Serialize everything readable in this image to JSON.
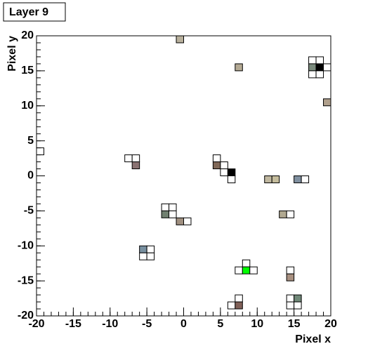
{
  "chart_data": {
    "type": "cells",
    "title": "Layer 9",
    "x_label": "Pixel x",
    "y_label": "Pixel y",
    "xlim": [
      -20,
      20
    ],
    "ylim": [
      -20,
      20
    ],
    "xticks": [
      -20,
      -15,
      -10,
      -5,
      0,
      5,
      10,
      15,
      20
    ],
    "yticks": [
      -20,
      -15,
      -10,
      -5,
      0,
      5,
      10,
      15,
      20
    ],
    "cells": [
      {
        "x": -1,
        "y": 19,
        "color": "#b8b09c"
      },
      {
        "x": 7,
        "y": 15,
        "color": "#b4aa94"
      },
      {
        "x": 17,
        "y": 16,
        "color": "#ffffff"
      },
      {
        "x": 18,
        "y": 16,
        "color": "#ffffff"
      },
      {
        "x": 17,
        "y": 15,
        "color": "#7a8a7c"
      },
      {
        "x": 18,
        "y": 15,
        "color": "#000000"
      },
      {
        "x": 19,
        "y": 15,
        "color": "#ffffff"
      },
      {
        "x": 17,
        "y": 14,
        "color": "#ffffff"
      },
      {
        "x": 18,
        "y": 14,
        "color": "#ffffff"
      },
      {
        "x": 19,
        "y": 10,
        "color": "#b0a08c"
      },
      {
        "x": -20,
        "y": 3,
        "color": "#ffffff"
      },
      {
        "x": -8,
        "y": 2,
        "color": "#ffffff"
      },
      {
        "x": -7,
        "y": 2,
        "color": "#ffffff"
      },
      {
        "x": -7,
        "y": 1,
        "color": "#8a7272"
      },
      {
        "x": 4,
        "y": 2,
        "color": "#ffffff"
      },
      {
        "x": 4,
        "y": 1,
        "color": "#806858"
      },
      {
        "x": 5,
        "y": 1,
        "color": "#ffffff"
      },
      {
        "x": 5,
        "y": 0,
        "color": "#ffffff"
      },
      {
        "x": 6,
        "y": 0,
        "color": "#000000"
      },
      {
        "x": 6,
        "y": -1,
        "color": "#ffffff"
      },
      {
        "x": 11,
        "y": -1,
        "color": "#c0b8a0"
      },
      {
        "x": 12,
        "y": -1,
        "color": "#c4bc9c"
      },
      {
        "x": 15,
        "y": -1,
        "color": "#8090a0"
      },
      {
        "x": 16,
        "y": -1,
        "color": "#ffffff"
      },
      {
        "x": -3,
        "y": -5,
        "color": "#ffffff"
      },
      {
        "x": -2,
        "y": -5,
        "color": "#ffffff"
      },
      {
        "x": -3,
        "y": -6,
        "color": "#708070"
      },
      {
        "x": -2,
        "y": -6,
        "color": "#ffffff"
      },
      {
        "x": -1,
        "y": -7,
        "color": "#a09080"
      },
      {
        "x": 0,
        "y": -7,
        "color": "#ffffff"
      },
      {
        "x": 13,
        "y": -6,
        "color": "#b0a890"
      },
      {
        "x": 14,
        "y": -6,
        "color": "#ffffff"
      },
      {
        "x": -6,
        "y": -11,
        "color": "#7890a0"
      },
      {
        "x": -5,
        "y": -11,
        "color": "#ffffff"
      },
      {
        "x": -6,
        "y": -12,
        "color": "#ffffff"
      },
      {
        "x": -5,
        "y": -12,
        "color": "#ffffff"
      },
      {
        "x": 8,
        "y": -13,
        "color": "#ffffff"
      },
      {
        "x": 7,
        "y": -14,
        "color": "#ffffff"
      },
      {
        "x": 8,
        "y": -14,
        "color": "#00ff00"
      },
      {
        "x": 9,
        "y": -14,
        "color": "#ffffff"
      },
      {
        "x": 14,
        "y": -14,
        "color": "#ffffff"
      },
      {
        "x": 14,
        "y": -15,
        "color": "#a89080"
      },
      {
        "x": 14,
        "y": -18,
        "color": "#ffffff"
      },
      {
        "x": 15,
        "y": -18,
        "color": "#708878"
      },
      {
        "x": 14,
        "y": -19,
        "color": "#ffffff"
      },
      {
        "x": 15,
        "y": -19,
        "color": "#ffffff"
      },
      {
        "x": 7,
        "y": -18,
        "color": "#ffffff"
      },
      {
        "x": 6,
        "y": -19,
        "color": "#ffffff"
      },
      {
        "x": 7,
        "y": -19,
        "color": "#806058"
      }
    ]
  }
}
